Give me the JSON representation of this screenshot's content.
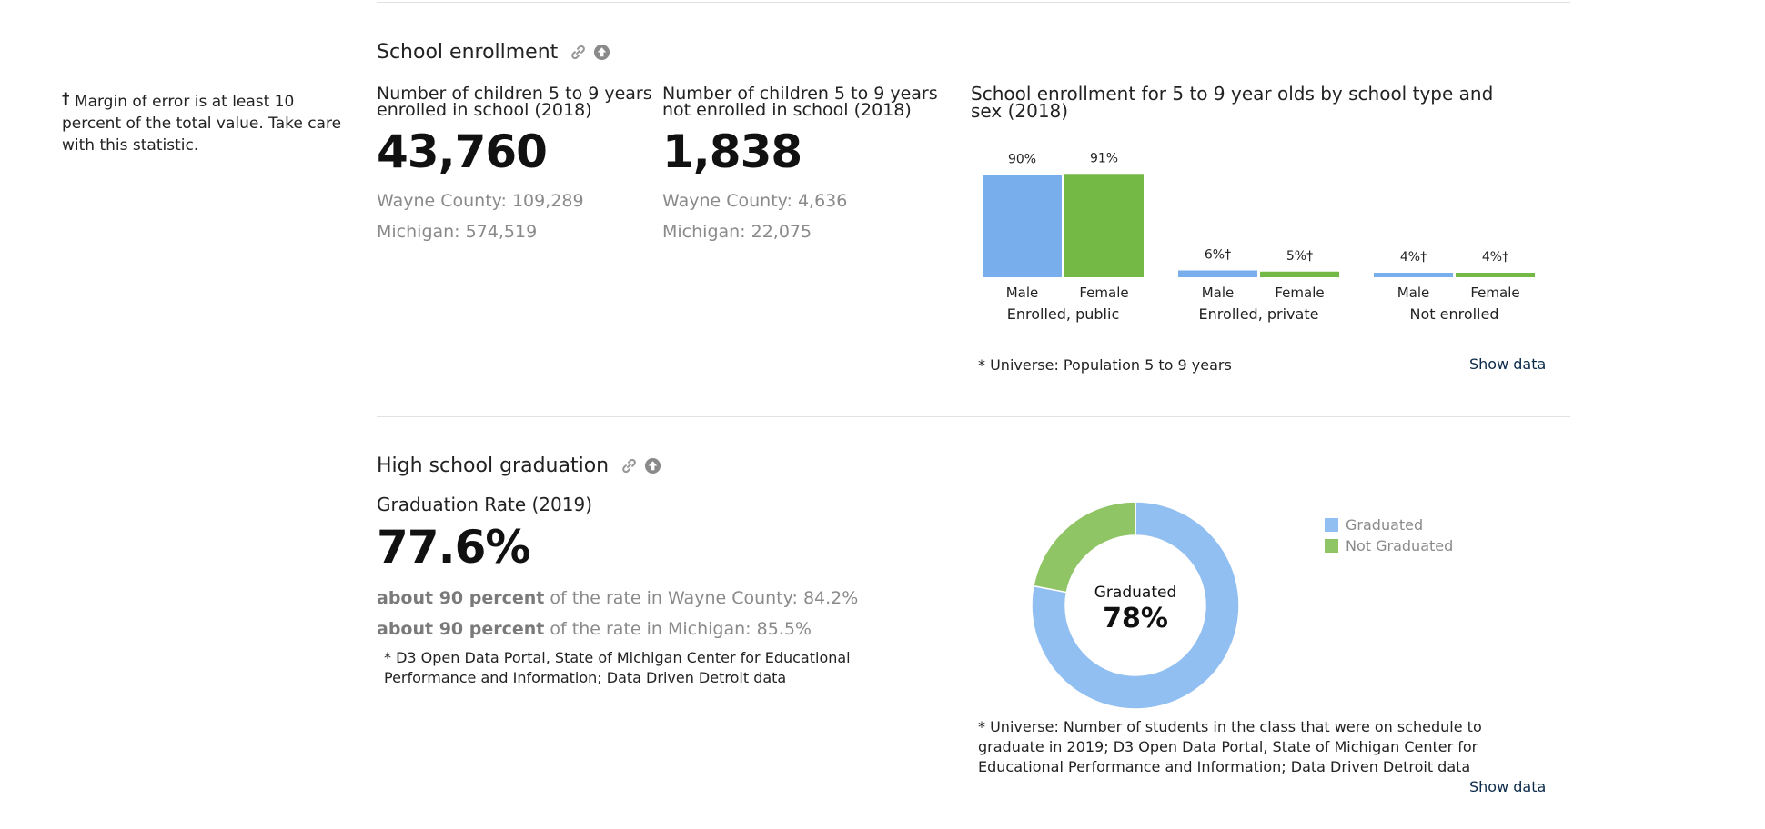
{
  "footnote": {
    "symbol": "†",
    "text": "Margin of error is at least 10 percent of the total value. Take care with this statistic."
  },
  "enrollment": {
    "section_title": "School enrollment",
    "stat_enrolled": {
      "heading": "Number of children 5 to 9 years enrolled in school (2018)",
      "value": "43,760",
      "wayne": "Wayne County: 109,289",
      "michigan": "Michigan: 574,519"
    },
    "stat_not_enrolled": {
      "heading": "Number of children 5 to 9 years not enrolled in school (2018)",
      "value": "1,838",
      "wayne": "Wayne County: 4,636",
      "michigan": "Michigan: 22,075"
    },
    "universe_note": "* Universe: Population 5 to 9 years",
    "show_data": "Show data"
  },
  "graduation": {
    "section_title": "High school graduation",
    "stat_heading": "Graduation Rate (2019)",
    "stat_value": "77.6%",
    "compare_wayne": {
      "bold": "about 90 percent",
      "rest": " of the rate in Wayne County: 84.2%"
    },
    "compare_michigan": {
      "bold": "about 90 percent",
      "rest": " of the rate in Michigan: 85.5%"
    },
    "source_note": "* D3 Open Data Portal, State of Michigan Center for Educational Performance and Information; Data Driven Detroit data",
    "universe_note": "* Universe: Number of students in the class that were on schedule to graduate in 2019; D3 Open Data Portal, State of Michigan Center for Educational Performance and Information; Data Driven Detroit data",
    "show_data": "Show data"
  },
  "chart_data": [
    {
      "type": "bar",
      "title": "School enrollment for 5 to 9 year olds by school type and sex (2018)",
      "groups": [
        "Enrolled, public",
        "Enrolled, private",
        "Not enrolled"
      ],
      "categories": [
        "Male",
        "Female"
      ],
      "series": [
        {
          "group": "Enrolled, public",
          "values": [
            90,
            91
          ],
          "labels": [
            "90%",
            "91%"
          ]
        },
        {
          "group": "Enrolled, private",
          "values": [
            6,
            5
          ],
          "labels": [
            "6%†",
            "5%†"
          ]
        },
        {
          "group": "Not enrolled",
          "values": [
            4,
            4
          ],
          "labels": [
            "4%†",
            "4%†"
          ]
        }
      ],
      "colors": [
        "#78aeec",
        "#74b845"
      ],
      "ylim": [
        0,
        100
      ]
    },
    {
      "type": "pie",
      "categories": [
        "Graduated",
        "Not Graduated"
      ],
      "values": [
        78,
        22
      ],
      "center_label": "Graduated",
      "center_value": "78%",
      "colors": [
        "#92bff1",
        "#90c565"
      ],
      "legend_position": "top-right"
    }
  ]
}
